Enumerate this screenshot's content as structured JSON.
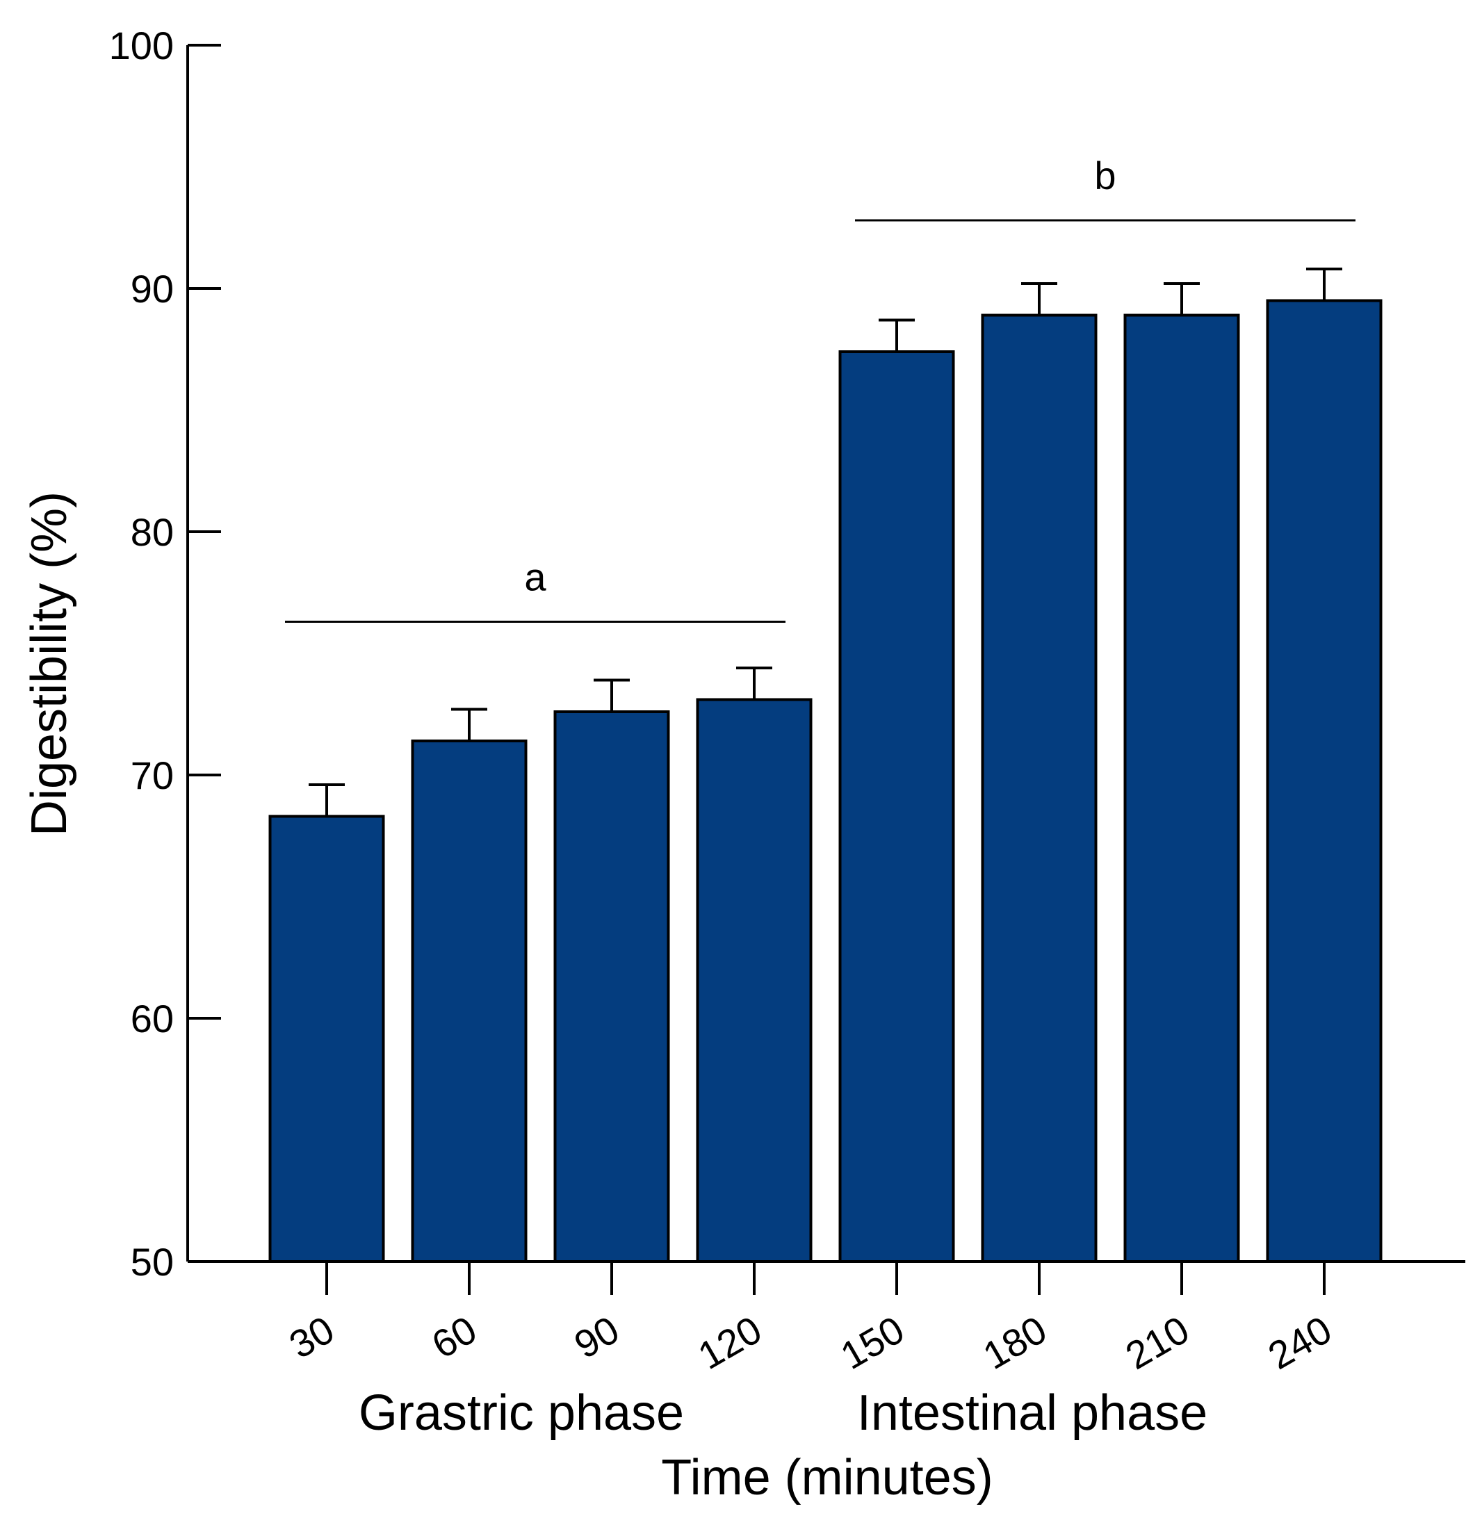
{
  "chart_data": {
    "type": "bar",
    "title": "",
    "xlabel": "Time (minutes)",
    "ylabel": "Digestibility (%)",
    "categories": [
      "30",
      "60",
      "90",
      "120",
      "150",
      "180",
      "210",
      "240"
    ],
    "values": [
      68.3,
      71.4,
      72.6,
      73.1,
      87.4,
      88.9,
      88.9,
      89.5
    ],
    "errors": [
      1.3,
      1.3,
      1.3,
      1.3,
      1.3,
      1.3,
      1.3,
      1.3
    ],
    "ylim": [
      50,
      100
    ],
    "yticks": [
      50,
      60,
      70,
      80,
      90,
      100
    ],
    "bar_color": "#043d7f",
    "phase_labels": [
      {
        "text": "Grastric phase",
        "categories": [
          "30",
          "60",
          "90",
          "120"
        ]
      },
      {
        "text": "Intestinal phase",
        "categories": [
          "150",
          "180",
          "210",
          "240"
        ]
      }
    ],
    "significance_groups": [
      {
        "letter": "a",
        "categories": [
          "30",
          "60",
          "90",
          "120"
        ],
        "level": 76.3
      },
      {
        "letter": "b",
        "categories": [
          "150",
          "180",
          "210",
          "240"
        ],
        "level": 92.8
      }
    ]
  }
}
